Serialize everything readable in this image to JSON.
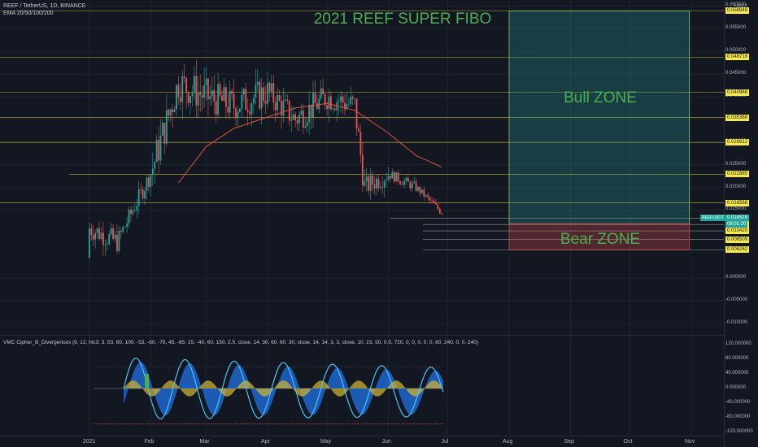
{
  "header": {
    "symbol_line": "REEF / TetherUS, 1D, BINANCE",
    "indicator_line": "EMA 20/50/100/200",
    "currency": "USDT"
  },
  "title": "2021 REEF SUPER FIBO",
  "zones": {
    "bull_label": "Bull ZONE",
    "bear_label": "Bear ZONE"
  },
  "fib_levels": [
    "0.058948",
    "0.048718",
    "0.040968",
    "0.035388",
    "0.029912",
    "0.022885",
    "0.016568",
    "0.013173",
    "0.011824",
    "0.010420",
    "0.008509",
    "0.006262"
  ],
  "last_price": {
    "value": "0.014519",
    "symbol": "REEFUSDT",
    "countdown": "08:01:20"
  },
  "price_axis_ticks": [
    "0.060000",
    "0.055000",
    "0.050000",
    "0.045000",
    "0.040000",
    "0.035000",
    "0.030000",
    "0.025000",
    "0.020000",
    "0.015000",
    "0.000000",
    "-0.005000",
    "-0.010000"
  ],
  "x_axis_ticks": [
    "2021",
    "Feb",
    "Mar",
    "Apr",
    "May",
    "Jun",
    "Jul",
    "Aug",
    "Sep",
    "Oct",
    "Nov"
  ],
  "oscillator": {
    "label": "VMC Cipher_B_Divergences (9, 12, hlc3, 3, 53, 60, 100, -53, -60, -75, 45, -65, 15, -40, 60, 150, 2.5, close, 14, 30, 60, 60, 30, close, 14, 14, 3, 3, close, 10, 23, 50, 0.5, 720, 0, 0, 0, 0, 0, 60, 240, 0, 0, 240)",
    "ticks": [
      "120.000000",
      "80.000000",
      "40.000000",
      "0.000000",
      "-40.000000",
      "-80.000000",
      "-120.000000"
    ]
  },
  "colors": {
    "background": "#131722",
    "bull": "#26a69a",
    "bear": "#ef5350",
    "fib_line": "#c8b43c",
    "ema": "#e0523a",
    "title_green": "#4caf50",
    "wave1": "#4fc3f7",
    "wave2": "#1e63c4",
    "money_flow_pos": "#c9b036",
    "money_flow_neg": "#e0523a"
  },
  "chart_data": {
    "type": "candlestick",
    "x_range": [
      "2020-12-30",
      "2021-11-01"
    ],
    "ylim": [
      -0.0125,
      0.0613
    ],
    "ohlc_approx": [
      {
        "date": "2021-01-01",
        "open": 0.0045,
        "high": 0.023,
        "low": 0.001,
        "close": 0.011
      },
      {
        "date": "2021-01-15",
        "open": 0.01,
        "high": 0.012,
        "low": 0.006,
        "close": 0.008
      },
      {
        "date": "2021-02-01",
        "open": 0.016,
        "high": 0.029,
        "low": 0.012,
        "close": 0.023
      },
      {
        "date": "2021-02-15",
        "open": 0.04,
        "high": 0.057,
        "low": 0.028,
        "close": 0.043
      },
      {
        "date": "2021-03-01",
        "open": 0.038,
        "high": 0.047,
        "low": 0.03,
        "close": 0.04
      },
      {
        "date": "2021-03-15",
        "open": 0.045,
        "high": 0.06,
        "low": 0.035,
        "close": 0.038
      },
      {
        "date": "2021-04-01",
        "open": 0.039,
        "high": 0.048,
        "low": 0.033,
        "close": 0.041
      },
      {
        "date": "2021-04-15",
        "open": 0.04,
        "high": 0.05,
        "low": 0.03,
        "close": 0.035
      },
      {
        "date": "2021-05-01",
        "open": 0.037,
        "high": 0.047,
        "low": 0.032,
        "close": 0.04
      },
      {
        "date": "2021-05-15",
        "open": 0.043,
        "high": 0.055,
        "low": 0.035,
        "close": 0.038
      },
      {
        "date": "2021-05-20",
        "open": 0.03,
        "high": 0.035,
        "low": 0.017,
        "close": 0.02
      },
      {
        "date": "2021-06-01",
        "open": 0.027,
        "high": 0.03,
        "low": 0.022,
        "close": 0.023
      },
      {
        "date": "2021-06-15",
        "open": 0.022,
        "high": 0.024,
        "low": 0.019,
        "close": 0.02
      },
      {
        "date": "2021-06-28",
        "open": 0.016,
        "high": 0.018,
        "low": 0.013,
        "close": 0.0145
      }
    ],
    "ema_approx": [
      {
        "date": "2021-02-15",
        "value": 0.021
      },
      {
        "date": "2021-03-01",
        "value": 0.029
      },
      {
        "date": "2021-03-15",
        "value": 0.033
      },
      {
        "date": "2021-04-01",
        "value": 0.0355
      },
      {
        "date": "2021-04-15",
        "value": 0.0375
      },
      {
        "date": "2021-05-01",
        "value": 0.0385
      },
      {
        "date": "2021-05-15",
        "value": 0.037
      },
      {
        "date": "2021-06-01",
        "value": 0.032
      },
      {
        "date": "2021-06-15",
        "value": 0.027
      },
      {
        "date": "2021-06-28",
        "value": 0.0245
      }
    ],
    "bull_zone": {
      "from": "2021-08-01",
      "to": "2021-10-31",
      "y_low": 0.012,
      "y_high": 0.0589
    },
    "bear_zone": {
      "from": "2021-08-01",
      "to": "2021-10-31",
      "y_low": 0.0062,
      "y_high": 0.012
    }
  }
}
